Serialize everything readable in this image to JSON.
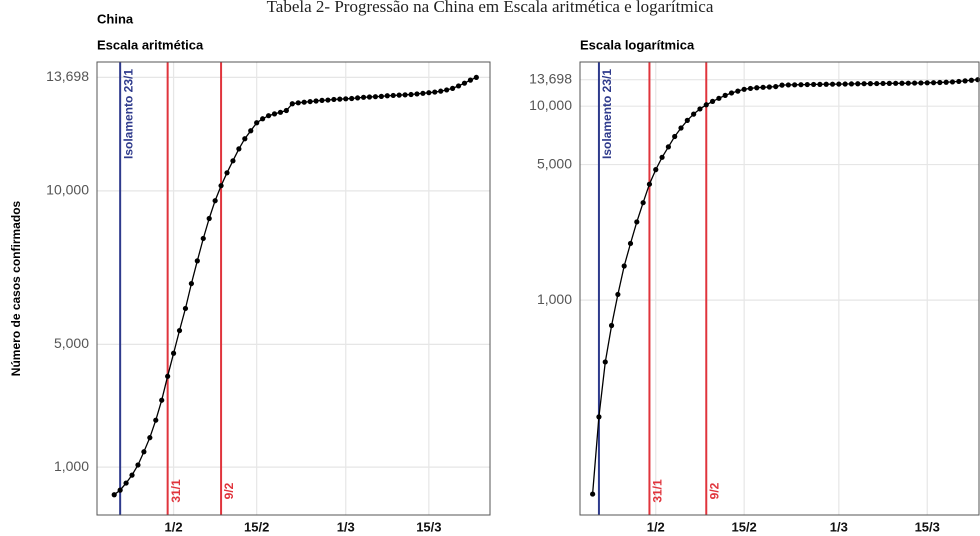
{
  "header": {
    "title": "Tabela 2- Progressão na China em Escala aritmética e logarítmica",
    "subtitle": "China"
  },
  "chart_data": [
    {
      "type": "line",
      "title": "Escala aritmética",
      "y_label": "Número de casos confirmados",
      "color": "#000000",
      "log_scale": false,
      "grid": true,
      "x": [
        22,
        23,
        24,
        25,
        26,
        27,
        28,
        29,
        30,
        31,
        32,
        33,
        34,
        35,
        36,
        37,
        38,
        39,
        40,
        41,
        42,
        43,
        44,
        45,
        46,
        47,
        48,
        49,
        50,
        51,
        52,
        53,
        54,
        55,
        56,
        57,
        58,
        59,
        60,
        61,
        62,
        63,
        64,
        65,
        66,
        67,
        68,
        69,
        70,
        71,
        72,
        73,
        74,
        75,
        76,
        77,
        78,
        79,
        80,
        81,
        82,
        83
      ],
      "values": [
        100,
        250,
        480,
        740,
        1070,
        1500,
        1960,
        2530,
        3180,
        3960,
        4710,
        5450,
        6170,
        6980,
        7720,
        8450,
        9100,
        9680,
        10170,
        10590,
        10980,
        11370,
        11700,
        11960,
        12220,
        12350,
        12450,
        12510,
        12560,
        12620,
        12840,
        12870,
        12890,
        12910,
        12930,
        12950,
        12960,
        12980,
        12990,
        13000,
        13010,
        13030,
        13050,
        13060,
        13070,
        13080,
        13100,
        13110,
        13120,
        13130,
        13140,
        13160,
        13180,
        13200,
        13220,
        13250,
        13290,
        13340,
        13420,
        13510,
        13610,
        13698
      ],
      "xlim": [
        19.1,
        85.3
      ],
      "ylim": [
        -560,
        14200
      ],
      "xticks": [
        {
          "value": 32,
          "label": "1/2"
        },
        {
          "value": 46,
          "label": "15/2"
        },
        {
          "value": 61,
          "label": "1/3"
        },
        {
          "value": 75,
          "label": "15/3"
        }
      ],
      "yticks": [
        {
          "value": 1000,
          "label": "1,000"
        },
        {
          "value": 5000,
          "label": "5,000"
        },
        {
          "value": 10000,
          "label": "10,000"
        },
        {
          "value": 13698,
          "label": "13,698"
        }
      ],
      "vlines": [
        {
          "x": 23,
          "label": "Isolamento 23/1",
          "color": "#2e3a8c"
        },
        {
          "x": 31,
          "label": "31/1",
          "color": "#e0343c"
        },
        {
          "x": 40,
          "label": "9/2",
          "color": "#e0343c"
        }
      ]
    },
    {
      "type": "line",
      "title": "Escala logarítmica",
      "color": "#000000",
      "log_scale": true,
      "grid": true,
      "x": [
        22,
        23,
        24,
        25,
        26,
        27,
        28,
        29,
        30,
        31,
        32,
        33,
        34,
        35,
        36,
        37,
        38,
        39,
        40,
        41,
        42,
        43,
        44,
        45,
        46,
        47,
        48,
        49,
        50,
        51,
        52,
        53,
        54,
        55,
        56,
        57,
        58,
        59,
        60,
        61,
        62,
        63,
        64,
        65,
        66,
        67,
        68,
        69,
        70,
        71,
        72,
        73,
        74,
        75,
        76,
        77,
        78,
        79,
        80,
        81,
        82,
        83
      ],
      "values": [
        100,
        250,
        480,
        740,
        1070,
        1500,
        1960,
        2530,
        3180,
        3960,
        4710,
        5450,
        6170,
        6980,
        7720,
        8450,
        9100,
        9680,
        10170,
        10590,
        10980,
        11370,
        11700,
        11960,
        12220,
        12350,
        12450,
        12510,
        12560,
        12620,
        12840,
        12870,
        12890,
        12910,
        12930,
        12950,
        12960,
        12980,
        12990,
        13000,
        13010,
        13030,
        13050,
        13060,
        13070,
        13080,
        13100,
        13110,
        13120,
        13130,
        13140,
        13160,
        13180,
        13200,
        13220,
        13250,
        13290,
        13340,
        13420,
        13510,
        13610,
        13698
      ],
      "xlim": [
        20,
        83.2
      ],
      "ylim": [
        78,
        16900
      ],
      "xticks": [
        {
          "value": 32,
          "label": "1/2"
        },
        {
          "value": 46,
          "label": "15/2"
        },
        {
          "value": 61,
          "label": "1/3"
        },
        {
          "value": 75,
          "label": "15/3"
        }
      ],
      "yticks": [
        {
          "value": 1000,
          "label": "1,000"
        },
        {
          "value": 5000,
          "label": "5,000"
        },
        {
          "value": 10000,
          "label": "10,000"
        },
        {
          "value": 13698,
          "label": "13,698"
        }
      ],
      "vlines": [
        {
          "x": 23,
          "label": "Isolamento 23/1",
          "color": "#2e3a8c"
        },
        {
          "x": 31,
          "label": "31/1",
          "color": "#e0343c"
        },
        {
          "x": 40,
          "label": "9/2",
          "color": "#e0343c"
        }
      ]
    }
  ]
}
